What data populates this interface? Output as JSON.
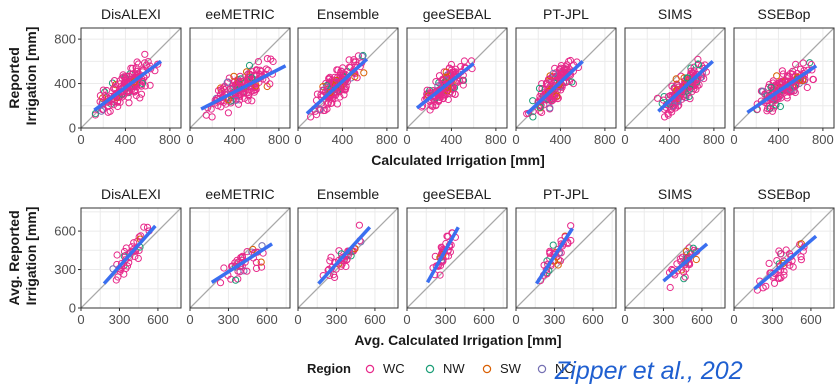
{
  "chart_data": [
    {
      "type": "scatter",
      "panels": [
        "DisALEXI",
        "eeMETRIC",
        "Ensemble",
        "geeSEBAL",
        "PT-JPL",
        "SIMS",
        "SSEBop"
      ],
      "xlabel": "Calculated Irrigation [mm]",
      "ylabel": "Reported Irrigation [mm]",
      "xlim": [
        0,
        900
      ],
      "ylim": [
        0,
        900
      ],
      "xticks": [
        0,
        400,
        800
      ],
      "yticks": [
        0,
        400,
        800
      ],
      "grid": true,
      "identity_line": true,
      "fit_lines": [
        {
          "panel": "DisALEXI",
          "x0": 120,
          "y0": 160,
          "x1": 720,
          "y1": 600
        },
        {
          "panel": "eeMETRIC",
          "x0": 100,
          "y0": 170,
          "x1": 860,
          "y1": 560
        },
        {
          "panel": "Ensemble",
          "x0": 80,
          "y0": 130,
          "x1": 620,
          "y1": 620
        },
        {
          "panel": "geeSEBAL",
          "x0": 90,
          "y0": 180,
          "x1": 600,
          "y1": 580
        },
        {
          "panel": "PT-JPL",
          "x0": 100,
          "y0": 130,
          "x1": 600,
          "y1": 600
        },
        {
          "panel": "SIMS",
          "x0": 300,
          "y0": 150,
          "x1": 790,
          "y1": 600
        },
        {
          "panel": "SSEBop",
          "x0": 120,
          "y0": 140,
          "x1": 740,
          "y1": 560
        }
      ],
      "point_clouds": [
        {
          "panel": "DisALEXI",
          "n": 160,
          "x_range": [
            100,
            720
          ],
          "y_range": [
            100,
            850
          ],
          "center_fit": true
        },
        {
          "panel": "eeMETRIC",
          "n": 160,
          "x_range": [
            80,
            860
          ],
          "y_range": [
            100,
            820
          ],
          "center_fit": true
        },
        {
          "panel": "Ensemble",
          "n": 160,
          "x_range": [
            80,
            640
          ],
          "y_range": [
            100,
            850
          ],
          "center_fit": true
        },
        {
          "panel": "geeSEBAL",
          "n": 160,
          "x_range": [
            80,
            620
          ],
          "y_range": [
            100,
            820
          ],
          "center_fit": true
        },
        {
          "panel": "PT-JPL",
          "n": 160,
          "x_range": [
            80,
            620
          ],
          "y_range": [
            100,
            820
          ],
          "center_fit": true
        },
        {
          "panel": "SIMS",
          "n": 160,
          "x_range": [
            250,
            800
          ],
          "y_range": [
            100,
            820
          ],
          "center_fit": true
        },
        {
          "panel": "SSEBop",
          "n": 160,
          "x_range": [
            80,
            840
          ],
          "y_range": [
            100,
            820
          ],
          "center_fit": true
        }
      ]
    },
    {
      "type": "scatter",
      "panels": [
        "DisALEXI",
        "eeMETRIC",
        "Ensemble",
        "geeSEBAL",
        "PT-JPL",
        "SIMS",
        "SSEBop"
      ],
      "xlabel": "Avg. Calculated Irrigation [mm]",
      "ylabel": "Avg. Reported Irrigation [mm]",
      "xlim": [
        0,
        780
      ],
      "ylim": [
        0,
        780
      ],
      "xticks": [
        0,
        300,
        600
      ],
      "yticks": [
        0,
        300,
        600
      ],
      "grid": true,
      "identity_line": true,
      "fit_lines": [
        {
          "panel": "DisALEXI",
          "x0": 180,
          "y0": 190,
          "x1": 580,
          "y1": 640
        },
        {
          "panel": "eeMETRIC",
          "x0": 170,
          "y0": 200,
          "x1": 640,
          "y1": 500
        },
        {
          "panel": "Ensemble",
          "x0": 160,
          "y0": 190,
          "x1": 560,
          "y1": 630
        },
        {
          "panel": "geeSEBAL",
          "x0": 160,
          "y0": 200,
          "x1": 400,
          "y1": 630
        },
        {
          "panel": "PT-JPL",
          "x0": 160,
          "y0": 190,
          "x1": 440,
          "y1": 620
        },
        {
          "panel": "SIMS",
          "x0": 300,
          "y0": 210,
          "x1": 640,
          "y1": 500
        },
        {
          "panel": "SSEBop",
          "x0": 160,
          "y0": 150,
          "x1": 640,
          "y1": 560
        }
      ],
      "point_clouds": [
        {
          "panel": "DisALEXI",
          "n": 40,
          "x_range": [
            150,
            600
          ],
          "y_range": [
            160,
            720
          ],
          "center_fit": true
        },
        {
          "panel": "eeMETRIC",
          "n": 40,
          "x_range": [
            150,
            660
          ],
          "y_range": [
            160,
            720
          ],
          "center_fit": true
        },
        {
          "panel": "Ensemble",
          "n": 40,
          "x_range": [
            150,
            580
          ],
          "y_range": [
            160,
            720
          ],
          "center_fit": true
        },
        {
          "panel": "geeSEBAL",
          "n": 40,
          "x_range": [
            150,
            420
          ],
          "y_range": [
            160,
            720
          ],
          "center_fit": true
        },
        {
          "panel": "PT-JPL",
          "n": 40,
          "x_range": [
            150,
            460
          ],
          "y_range": [
            160,
            720
          ],
          "center_fit": true
        },
        {
          "panel": "SIMS",
          "n": 40,
          "x_range": [
            270,
            660
          ],
          "y_range": [
            160,
            720
          ],
          "center_fit": true
        },
        {
          "panel": "SSEBop",
          "n": 40,
          "x_range": [
            150,
            660
          ],
          "y_range": [
            140,
            720
          ],
          "center_fit": true
        }
      ]
    }
  ],
  "legend": {
    "title": "Region",
    "position": "bottom",
    "items": [
      {
        "label": "WC",
        "color": "#e7298a"
      },
      {
        "label": "NW",
        "color": "#1b9e77"
      },
      {
        "label": "SW",
        "color": "#d95f02"
      },
      {
        "label": "NC",
        "color": "#7570b3"
      }
    ]
  },
  "colors": {
    "fit_line": "#3a6ff0",
    "identity_line": "#a8a8a8",
    "grid": "#ebebeb",
    "citation": "#1f5fd0"
  },
  "citation": "Zipper et al., 202"
}
